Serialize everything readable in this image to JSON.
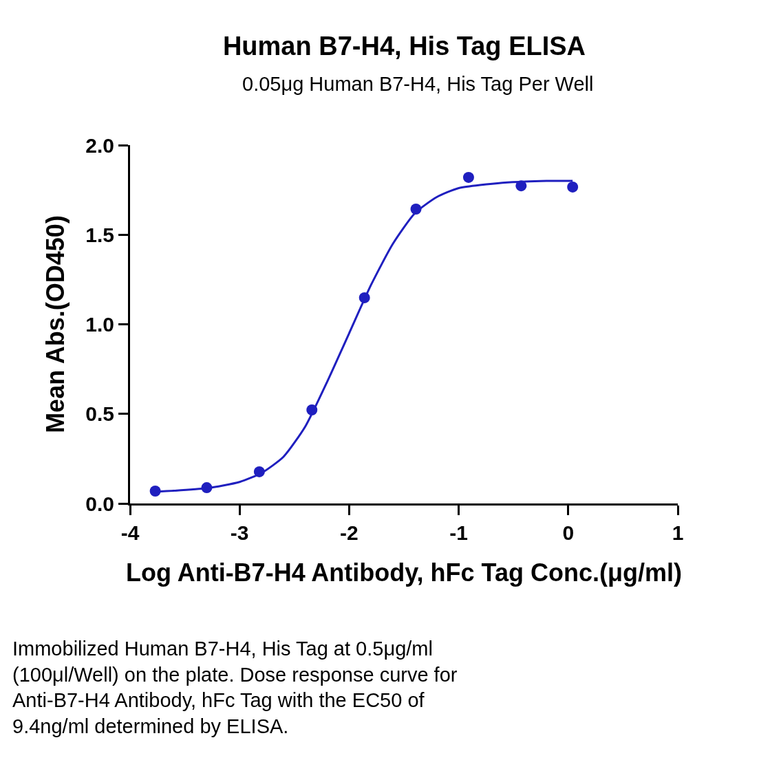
{
  "chart_data": {
    "type": "scatter",
    "title": "Human B7-H4, His Tag ELISA",
    "subtitle": "0.05μg Human B7-H4, His Tag Per Well",
    "xlabel": "Log Anti-B7-H4 Antibody, hFc Tag Conc.(μg/ml)",
    "ylabel": "Mean Abs.(OD450)",
    "series": [
      {
        "color": "#1f1fbf",
        "marker": "circle",
        "x": [
          -3.77,
          -3.3,
          -2.82,
          -2.34,
          -1.86,
          -1.39,
          -0.91,
          -0.43,
          0.04
        ],
        "values": [
          0.069,
          0.088,
          0.177,
          0.522,
          1.148,
          1.643,
          1.82,
          1.773,
          1.766
        ]
      },
      {
        "type": "line",
        "color": "#1f1fbf",
        "line_style": "solid",
        "x": [
          -3.77,
          -3.3,
          -3.0,
          -2.8,
          -2.6,
          -2.4,
          -2.2,
          -2.0,
          -1.8,
          -1.6,
          -1.4,
          -1.2,
          -1.0,
          -0.6,
          -0.2,
          0.04
        ],
        "values": [
          0.065,
          0.085,
          0.12,
          0.17,
          0.26,
          0.43,
          0.68,
          0.95,
          1.22,
          1.45,
          1.62,
          1.71,
          1.76,
          1.79,
          1.8,
          1.8
        ]
      }
    ],
    "xlim": [
      -4,
      1
    ],
    "xticks": [
      -4,
      -3,
      -2,
      -1,
      0,
      1
    ],
    "ylim": [
      0,
      2
    ],
    "yticks": [
      {
        "value": 0,
        "label": "0.0"
      },
      {
        "value": 0.5,
        "label": "0.5"
      },
      {
        "value": 1,
        "label": "1.0"
      },
      {
        "value": 1.5,
        "label": "1.5"
      },
      {
        "value": 2,
        "label": "2.0"
      }
    ],
    "grid": false,
    "annotations": [
      "Immobilized Human B7-H4, His Tag at 0.5μg/ml (100μl/Well) on the plate. Dose response curve for Anti-B7-H4 Antibody, hFc Tag with the EC50 of 9.4ng/ml determined by ELISA."
    ]
  }
}
